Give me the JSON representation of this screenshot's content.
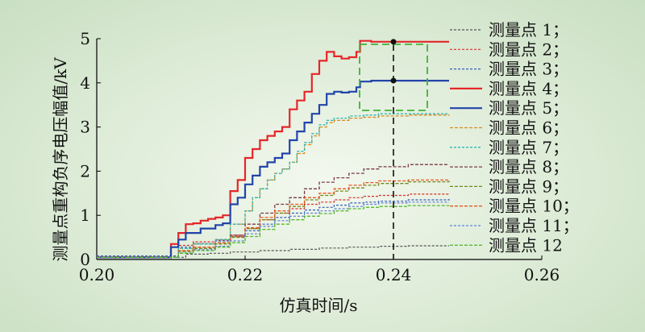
{
  "chart_data": {
    "type": "line",
    "xlabel": "仿真时间/s",
    "ylabel": "测量点重构负序电压幅值/kV",
    "xlim": [
      0.2,
      0.26
    ],
    "ylim": [
      0,
      5
    ],
    "x_ticks": [
      "0.20",
      "0.22",
      "0.24",
      "0.26"
    ],
    "y_ticks": [
      "0",
      "1",
      "2",
      "3",
      "4",
      "5"
    ],
    "grid": false,
    "legend_position": "right",
    "marker_time": 0.24,
    "series": [
      {
        "name": "测量点 1；",
        "color": "#555555",
        "dash": "3,2",
        "width": 1.2,
        "points": [
          [
            0.2,
            0.05
          ],
          [
            0.21,
            0.05
          ],
          [
            0.212,
            0.12
          ],
          [
            0.215,
            0.14
          ],
          [
            0.218,
            0.17
          ],
          [
            0.222,
            0.2
          ],
          [
            0.226,
            0.23
          ],
          [
            0.23,
            0.26
          ],
          [
            0.234,
            0.28
          ],
          [
            0.238,
            0.3
          ],
          [
            0.242,
            0.31
          ],
          [
            0.2475,
            0.31
          ]
        ]
      },
      {
        "name": "测量点 2；",
        "color": "#d9302a",
        "dash": "3,2",
        "width": 1.2,
        "points": [
          [
            0.2,
            0.08
          ],
          [
            0.21,
            0.08
          ],
          [
            0.211,
            0.32
          ],
          [
            0.213,
            0.4
          ],
          [
            0.216,
            0.44
          ],
          [
            0.218,
            0.55
          ],
          [
            0.22,
            0.7
          ],
          [
            0.222,
            0.9
          ],
          [
            0.224,
            1.05
          ],
          [
            0.226,
            1.15
          ],
          [
            0.228,
            1.25
          ],
          [
            0.23,
            1.3
          ],
          [
            0.232,
            1.35
          ],
          [
            0.234,
            1.4
          ],
          [
            0.236,
            1.43
          ],
          [
            0.238,
            1.45
          ],
          [
            0.242,
            1.48
          ],
          [
            0.2475,
            1.5
          ]
        ]
      },
      {
        "name": "测量点 3；",
        "color": "#3a5fbf",
        "dash": "3,2",
        "width": 1.2,
        "points": [
          [
            0.2,
            0.08
          ],
          [
            0.21,
            0.08
          ],
          [
            0.211,
            0.28
          ],
          [
            0.213,
            0.36
          ],
          [
            0.216,
            0.42
          ],
          [
            0.218,
            0.52
          ],
          [
            0.22,
            0.65
          ],
          [
            0.222,
            0.8
          ],
          [
            0.224,
            0.95
          ],
          [
            0.226,
            1.05
          ],
          [
            0.228,
            1.12
          ],
          [
            0.23,
            1.18
          ],
          [
            0.232,
            1.23
          ],
          [
            0.234,
            1.28
          ],
          [
            0.236,
            1.3
          ],
          [
            0.238,
            1.32
          ],
          [
            0.242,
            1.35
          ],
          [
            0.2475,
            1.37
          ]
        ]
      },
      {
        "name": "测量点 4；",
        "color": "#e5262a",
        "dash": "",
        "width": 2.2,
        "points": [
          [
            0.2,
            0.05
          ],
          [
            0.209,
            0.05
          ],
          [
            0.21,
            0.35
          ],
          [
            0.211,
            0.6
          ],
          [
            0.212,
            0.8
          ],
          [
            0.213,
            0.82
          ],
          [
            0.214,
            0.88
          ],
          [
            0.215,
            0.92
          ],
          [
            0.216,
            0.95
          ],
          [
            0.217,
            1.0
          ],
          [
            0.218,
            1.55
          ],
          [
            0.219,
            1.8
          ],
          [
            0.22,
            2.3
          ],
          [
            0.221,
            2.5
          ],
          [
            0.222,
            2.7
          ],
          [
            0.223,
            2.8
          ],
          [
            0.224,
            2.9
          ],
          [
            0.225,
            3.0
          ],
          [
            0.226,
            3.4
          ],
          [
            0.227,
            3.6
          ],
          [
            0.228,
            3.8
          ],
          [
            0.229,
            4.2
          ],
          [
            0.23,
            4.5
          ],
          [
            0.231,
            4.7
          ],
          [
            0.232,
            4.6
          ],
          [
            0.233,
            4.55
          ],
          [
            0.234,
            4.58
          ],
          [
            0.235,
            4.7
          ],
          [
            0.2355,
            4.95
          ],
          [
            0.237,
            4.93
          ],
          [
            0.2475,
            4.93
          ]
        ]
      },
      {
        "name": "测量点 5；",
        "color": "#2244aa",
        "dash": "",
        "width": 2.2,
        "points": [
          [
            0.2,
            0.05
          ],
          [
            0.209,
            0.05
          ],
          [
            0.21,
            0.28
          ],
          [
            0.211,
            0.45
          ],
          [
            0.212,
            0.6
          ],
          [
            0.214,
            0.7
          ],
          [
            0.216,
            0.78
          ],
          [
            0.217,
            0.82
          ],
          [
            0.218,
            1.25
          ],
          [
            0.219,
            1.4
          ],
          [
            0.22,
            1.7
          ],
          [
            0.221,
            1.9
          ],
          [
            0.222,
            2.1
          ],
          [
            0.223,
            2.2
          ],
          [
            0.224,
            2.3
          ],
          [
            0.225,
            2.4
          ],
          [
            0.226,
            2.7
          ],
          [
            0.227,
            2.9
          ],
          [
            0.228,
            3.1
          ],
          [
            0.229,
            3.3
          ],
          [
            0.23,
            3.5
          ],
          [
            0.231,
            3.75
          ],
          [
            0.232,
            3.8
          ],
          [
            0.233,
            3.78
          ],
          [
            0.234,
            3.8
          ],
          [
            0.235,
            3.9
          ],
          [
            0.2355,
            4.03
          ],
          [
            0.237,
            4.05
          ],
          [
            0.2475,
            4.05
          ]
        ]
      },
      {
        "name": "测量点 6；",
        "color": "#d98a1f",
        "dash": "4,2",
        "width": 1.3,
        "points": [
          [
            0.2,
            0.05
          ],
          [
            0.21,
            0.05
          ],
          [
            0.211,
            0.25
          ],
          [
            0.213,
            0.35
          ],
          [
            0.216,
            0.45
          ],
          [
            0.218,
            0.8
          ],
          [
            0.22,
            1.1
          ],
          [
            0.221,
            1.4
          ],
          [
            0.222,
            1.6
          ],
          [
            0.223,
            1.8
          ],
          [
            0.224,
            1.95
          ],
          [
            0.225,
            2.05
          ],
          [
            0.226,
            2.2
          ],
          [
            0.227,
            2.4
          ],
          [
            0.228,
            2.6
          ],
          [
            0.229,
            2.8
          ],
          [
            0.23,
            3.0
          ],
          [
            0.231,
            3.1
          ],
          [
            0.232,
            3.15
          ],
          [
            0.234,
            3.2
          ],
          [
            0.236,
            3.22
          ],
          [
            0.238,
            3.25
          ],
          [
            0.242,
            3.27
          ],
          [
            0.2475,
            3.28
          ]
        ]
      },
      {
        "name": "测量点 7；",
        "color": "#2fb5b0",
        "dash": "3,2",
        "width": 1.3,
        "points": [
          [
            0.2,
            0.05
          ],
          [
            0.21,
            0.05
          ],
          [
            0.211,
            0.25
          ],
          [
            0.213,
            0.35
          ],
          [
            0.216,
            0.45
          ],
          [
            0.218,
            0.8
          ],
          [
            0.22,
            1.1
          ],
          [
            0.221,
            1.4
          ],
          [
            0.222,
            1.6
          ],
          [
            0.223,
            1.8
          ],
          [
            0.224,
            1.95
          ],
          [
            0.225,
            2.05
          ],
          [
            0.226,
            2.2
          ],
          [
            0.227,
            2.45
          ],
          [
            0.228,
            2.65
          ],
          [
            0.229,
            2.85
          ],
          [
            0.23,
            3.05
          ],
          [
            0.231,
            3.15
          ],
          [
            0.232,
            3.2
          ],
          [
            0.234,
            3.25
          ],
          [
            0.236,
            3.27
          ],
          [
            0.238,
            3.3
          ],
          [
            0.242,
            3.3
          ],
          [
            0.2475,
            3.3
          ]
        ]
      },
      {
        "name": "测量点 8；",
        "color": "#7a3a48",
        "dash": "4,2",
        "width": 1.3,
        "points": [
          [
            0.2,
            0.05
          ],
          [
            0.21,
            0.05
          ],
          [
            0.211,
            0.2
          ],
          [
            0.213,
            0.28
          ],
          [
            0.216,
            0.38
          ],
          [
            0.218,
            0.55
          ],
          [
            0.22,
            0.8
          ],
          [
            0.222,
            1.05
          ],
          [
            0.224,
            1.25
          ],
          [
            0.226,
            1.4
          ],
          [
            0.228,
            1.6
          ],
          [
            0.23,
            1.75
          ],
          [
            0.232,
            1.85
          ],
          [
            0.234,
            1.95
          ],
          [
            0.236,
            2.05
          ],
          [
            0.238,
            2.1
          ],
          [
            0.242,
            2.15
          ],
          [
            0.2475,
            2.15
          ]
        ]
      },
      {
        "name": "测量点 9；",
        "color": "#6e8a1c",
        "dash": "4,2",
        "width": 1.3,
        "points": [
          [
            0.2,
            0.05
          ],
          [
            0.21,
            0.05
          ],
          [
            0.211,
            0.18
          ],
          [
            0.213,
            0.25
          ],
          [
            0.216,
            0.35
          ],
          [
            0.218,
            0.5
          ],
          [
            0.22,
            0.7
          ],
          [
            0.222,
            0.9
          ],
          [
            0.224,
            1.05
          ],
          [
            0.226,
            1.2
          ],
          [
            0.228,
            1.35
          ],
          [
            0.23,
            1.45
          ],
          [
            0.232,
            1.55
          ],
          [
            0.234,
            1.62
          ],
          [
            0.236,
            1.68
          ],
          [
            0.238,
            1.72
          ],
          [
            0.242,
            1.76
          ],
          [
            0.2475,
            1.78
          ]
        ]
      },
      {
        "name": "测量点 10；",
        "color": "#e8571f",
        "dash": "4,2",
        "width": 1.3,
        "points": [
          [
            0.2,
            0.05
          ],
          [
            0.21,
            0.05
          ],
          [
            0.211,
            0.2
          ],
          [
            0.213,
            0.28
          ],
          [
            0.216,
            0.38
          ],
          [
            0.218,
            0.52
          ],
          [
            0.22,
            0.72
          ],
          [
            0.222,
            0.95
          ],
          [
            0.224,
            1.1
          ],
          [
            0.226,
            1.25
          ],
          [
            0.228,
            1.4
          ],
          [
            0.23,
            1.5
          ],
          [
            0.232,
            1.6
          ],
          [
            0.234,
            1.68
          ],
          [
            0.236,
            1.74
          ],
          [
            0.238,
            1.78
          ],
          [
            0.242,
            1.8
          ],
          [
            0.2475,
            1.82
          ]
        ]
      },
      {
        "name": "测量点 11；",
        "color": "#5b7fd1",
        "dash": "3,2",
        "width": 1.2,
        "points": [
          [
            0.2,
            0.05
          ],
          [
            0.21,
            0.05
          ],
          [
            0.211,
            0.15
          ],
          [
            0.213,
            0.22
          ],
          [
            0.216,
            0.3
          ],
          [
            0.218,
            0.42
          ],
          [
            0.22,
            0.58
          ],
          [
            0.222,
            0.75
          ],
          [
            0.224,
            0.88
          ],
          [
            0.226,
            0.98
          ],
          [
            0.228,
            1.05
          ],
          [
            0.23,
            1.1
          ],
          [
            0.232,
            1.15
          ],
          [
            0.234,
            1.2
          ],
          [
            0.236,
            1.25
          ],
          [
            0.238,
            1.28
          ],
          [
            0.242,
            1.3
          ],
          [
            0.2475,
            1.3
          ]
        ]
      },
      {
        "name": "测量点 12",
        "color": "#58b82e",
        "dash": "4,2",
        "width": 1.3,
        "points": [
          [
            0.2,
            0.05
          ],
          [
            0.21,
            0.05
          ],
          [
            0.211,
            0.14
          ],
          [
            0.213,
            0.2
          ],
          [
            0.216,
            0.28
          ],
          [
            0.218,
            0.38
          ],
          [
            0.22,
            0.52
          ],
          [
            0.222,
            0.68
          ],
          [
            0.224,
            0.8
          ],
          [
            0.226,
            0.9
          ],
          [
            0.228,
            0.98
          ],
          [
            0.23,
            1.04
          ],
          [
            0.232,
            1.1
          ],
          [
            0.234,
            1.15
          ],
          [
            0.236,
            1.18
          ],
          [
            0.238,
            1.2
          ],
          [
            0.242,
            1.22
          ],
          [
            0.2475,
            1.22
          ]
        ]
      }
    ],
    "marker_points": [
      4.93,
      4.05
    ]
  }
}
